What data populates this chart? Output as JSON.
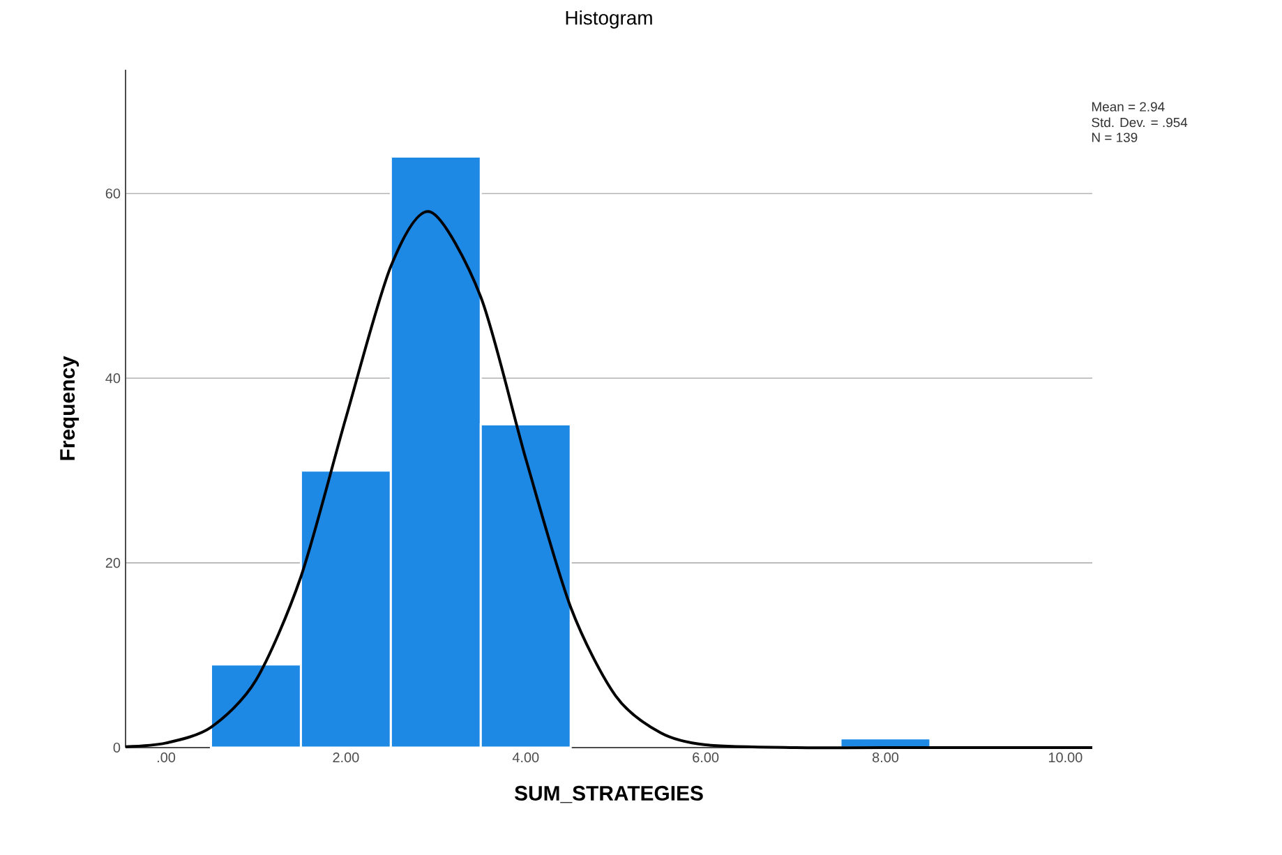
{
  "chart_data": {
    "type": "histogram",
    "title": "Histogram",
    "xlabel": "SUM_STRATEGIES",
    "ylabel": "Frequency",
    "annotations": [
      "Mean = 2.94",
      "Std. Dev. = .954",
      "N = 139"
    ],
    "series": [
      {
        "color": "#1e88e5",
        "bins": [
          0.5,
          1.5,
          2.5,
          3.5,
          4.5,
          5.5,
          6.5,
          7.5,
          8.5
        ],
        "values": [
          9,
          30,
          64,
          35,
          0,
          0,
          0,
          1
        ]
      },
      {
        "type": "line",
        "color": "#000000",
        "x": [
          -0.45,
          0,
          0.5,
          1,
          1.5,
          2,
          2.5,
          2.94,
          3.5,
          4,
          4.5,
          5,
          5.5,
          6,
          7,
          8,
          10.3
        ],
        "values": [
          0.1,
          0.5,
          2.2,
          7.3,
          18.5,
          35.7,
          52.1,
          58,
          48.8,
          31.3,
          15.2,
          5.6,
          1.6,
          0.3,
          0,
          0,
          0
        ]
      }
    ],
    "xlim": [
      -0.45,
      10.3
    ],
    "ylim": [
      0,
      73.4
    ],
    "xticks": [
      {
        "value": 0,
        "label": ".00"
      },
      {
        "value": 2,
        "label": "2.00"
      },
      {
        "value": 4,
        "label": "4.00"
      },
      {
        "value": 6,
        "label": "6.00"
      },
      {
        "value": 8,
        "label": "8.00"
      },
      {
        "value": 10,
        "label": "10.00"
      }
    ],
    "yticks": [
      0,
      20,
      40,
      60
    ],
    "grid": "y"
  }
}
